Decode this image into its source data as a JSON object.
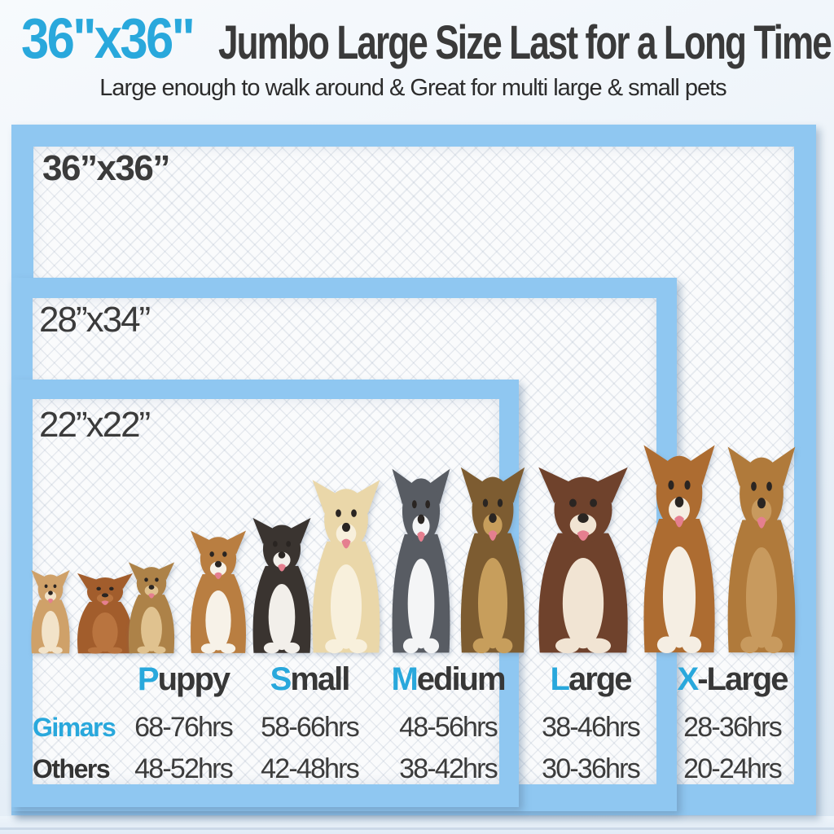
{
  "header": {
    "size": "36\"x36\"",
    "title": "Jumbo Large Size Last for a Long Time",
    "subtitle": "Large enough to walk around & Great for multi large & small pets"
  },
  "pads": [
    {
      "label": "36”x36”"
    },
    {
      "label": "28”x34”"
    },
    {
      "label": "22”x22”"
    }
  ],
  "dogs": [
    {
      "breed": "chihuahua",
      "color": "#cfa169",
      "accent": "#f2e3c9"
    },
    {
      "breed": "dachshund",
      "color": "#a25d2c",
      "accent": "#b9743f"
    },
    {
      "breed": "yorkshire-terrier",
      "color": "#ad8248",
      "accent": "#e0c28f"
    },
    {
      "breed": "beagle",
      "color": "#b97e41",
      "accent": "#f7f2e8"
    },
    {
      "breed": "french-bulldog",
      "color": "#3a3430",
      "accent": "#f2efea"
    },
    {
      "breed": "labrador",
      "color": "#ead7a9",
      "accent": "#f8f0dc"
    },
    {
      "breed": "husky",
      "color": "#585c63",
      "accent": "#f4f5f6"
    },
    {
      "breed": "german-shepherd",
      "color": "#7d5c31",
      "accent": "#c79e5c"
    },
    {
      "breed": "alaskan-malamute",
      "color": "#6f422c",
      "accent": "#f1e4d3"
    },
    {
      "breed": "boxer",
      "color": "#ad6c31",
      "accent": "#f5eee3"
    },
    {
      "breed": "great-dane",
      "color": "#b07a3b",
      "accent": "#c89a5e"
    }
  ],
  "size_table": {
    "columns": [
      {
        "initial": "P",
        "rest": "uppy"
      },
      {
        "initial": "S",
        "rest": "mall"
      },
      {
        "initial": "M",
        "rest": "edium"
      },
      {
        "initial": "L",
        "rest": "arge"
      },
      {
        "initial": "X",
        "rest": "-Large"
      }
    ],
    "rows": [
      {
        "label": "Gimars",
        "values": [
          "68-76hrs",
          "58-66hrs",
          "48-56hrs",
          "38-46hrs",
          "28-36hrs"
        ]
      },
      {
        "label": "Others",
        "values": [
          "48-52hrs",
          "42-48hrs",
          "38-42hrs",
          "30-36hrs",
          "20-24hrs"
        ]
      }
    ]
  },
  "chart_data": {
    "type": "table",
    "categories": [
      "Puppy",
      "Small",
      "Medium",
      "Large",
      "X-Large"
    ],
    "series": [
      {
        "name": "Gimars",
        "values": [
          "68-76",
          "58-66",
          "48-56",
          "38-46",
          "28-36"
        ]
      },
      {
        "name": "Others",
        "values": [
          "48-52",
          "42-48",
          "38-42",
          "30-36",
          "20-24"
        ]
      }
    ],
    "units": "hrs"
  },
  "colors": {
    "accent_blue": "#29a8dc",
    "pad_border": "#8fc7f1",
    "text_dark": "#373737"
  }
}
